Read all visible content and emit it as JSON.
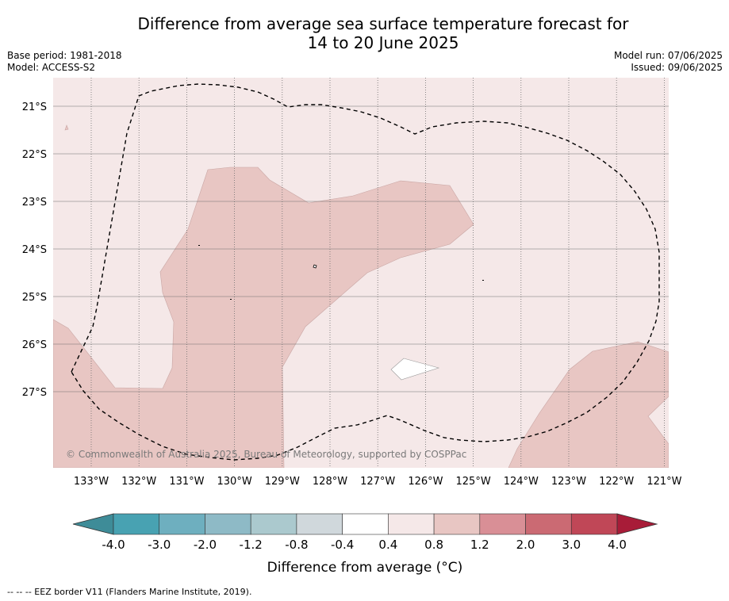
{
  "title": {
    "line1": "Difference from average sea surface temperature forecast for",
    "line2": "14 to 20 June 2025"
  },
  "meta": {
    "base_period": "Base period: 1981-2018",
    "model": "Model: ACCESS-S2",
    "model_run": "Model run: 07/06/2025",
    "issued": "Issued: 09/06/2025"
  },
  "map": {
    "lat_labels": [
      "21°S",
      "22°S",
      "23°S",
      "24°S",
      "25°S",
      "26°S",
      "27°S"
    ],
    "lon_labels": [
      "133°W",
      "132°W",
      "131°W",
      "130°W",
      "129°W",
      "128°W",
      "127°W",
      "126°W",
      "125°W",
      "124°W",
      "123°W",
      "122°W",
      "121°W"
    ],
    "copyright": "© Commonwealth of Australia 2025, Bureau of Meteorology, supported by COSPPac",
    "fill_colors": {
      "background_0_4_to_0_8": "#f5e8e8",
      "anomaly_0_8_to_1_2": "#e8c6c3",
      "anomaly_minus_0_4_to_0_4": "#ffffff"
    }
  },
  "colorbar": {
    "ticks": [
      "-4.0",
      "-3.0",
      "-2.0",
      "-1.2",
      "-0.8",
      "-0.4",
      "0.4",
      "0.8",
      "1.2",
      "2.0",
      "3.0",
      "4.0"
    ],
    "colors": [
      "#3e8c98",
      "#48a2b2",
      "#6eafbf",
      "#8ebac6",
      "#abc9ce",
      "#d0d8dc",
      "#ffffff",
      "#f5e8e8",
      "#e8c6c3",
      "#d98f96",
      "#cb6a73",
      "#c04757",
      "#a81c38"
    ],
    "label": "Difference from average (°C)"
  },
  "footnote": "--  --  -- EEZ border V11 (Flanders Marine Institute, 2019)."
}
